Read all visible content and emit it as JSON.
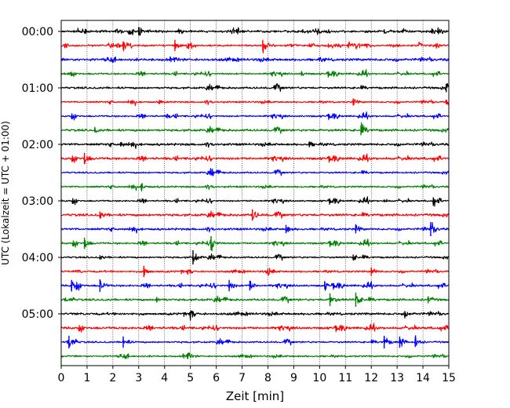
{
  "chart_data": {
    "type": "line",
    "subtype": "helicorder",
    "title": "",
    "xlabel": "Zeit  [min]",
    "ylabel": "UTC (Lokalzeit = UTC + 01:00)",
    "xlim": [
      0,
      15
    ],
    "x_ticks": [
      "0",
      "1",
      "2",
      "3",
      "4",
      "5",
      "6",
      "7",
      "8",
      "9",
      "10",
      "11",
      "12",
      "13",
      "14",
      "15"
    ],
    "y_ticks": [
      "00:00",
      "01:00",
      "02:00",
      "03:00",
      "04:00",
      "05:00"
    ],
    "trace_minutes": 15,
    "grid": {
      "x": true,
      "y": false,
      "style": "dotted"
    },
    "colors": [
      "#000000",
      "#ff0000",
      "#0000ff",
      "#008000"
    ],
    "traces": [
      {
        "start": "00:00",
        "events": [
          {
            "t": 3.0,
            "amp": 6
          },
          {
            "t": 12.5,
            "amp": 3
          }
        ]
      },
      {
        "start": "00:15",
        "events": [
          {
            "t": 2.4,
            "amp": 6
          },
          {
            "t": 4.4,
            "amp": 8
          },
          {
            "t": 7.8,
            "amp": 8
          }
        ]
      },
      {
        "start": "00:30",
        "events": [
          {
            "t": 10.0,
            "amp": 2
          }
        ]
      },
      {
        "start": "00:45",
        "events": [
          {
            "t": 9.3,
            "amp": 3
          }
        ]
      },
      {
        "start": "01:00",
        "events": [
          {
            "t": 8.3,
            "amp": 2
          },
          {
            "t": 14.9,
            "amp": 6
          }
        ]
      },
      {
        "start": "01:15",
        "events": [
          {
            "t": 3.8,
            "amp": 3
          },
          {
            "t": 11.3,
            "amp": 5
          },
          {
            "t": 14.9,
            "amp": 3
          }
        ]
      },
      {
        "start": "01:30",
        "events": [
          {
            "t": 4.1,
            "amp": 3
          }
        ]
      },
      {
        "start": "01:45",
        "events": [
          {
            "t": 1.3,
            "amp": 3
          },
          {
            "t": 11.6,
            "amp": 7
          }
        ]
      },
      {
        "start": "02:00",
        "events": [
          {
            "t": 2.3,
            "amp": 3
          },
          {
            "t": 9.6,
            "amp": 4
          }
        ]
      },
      {
        "start": "02:15",
        "events": [
          {
            "t": 0.9,
            "amp": 8
          }
        ]
      },
      {
        "start": "02:30",
        "events": [
          {
            "t": 5.8,
            "amp": 4
          }
        ]
      },
      {
        "start": "02:45",
        "events": [
          {
            "t": 3.1,
            "amp": 4
          }
        ]
      },
      {
        "start": "03:00",
        "events": [
          {
            "t": 12.5,
            "amp": 2
          },
          {
            "t": 14.4,
            "amp": 5
          }
        ]
      },
      {
        "start": "03:15",
        "events": [
          {
            "t": 1.5,
            "amp": 5
          },
          {
            "t": 7.4,
            "amp": 8
          }
        ]
      },
      {
        "start": "03:30",
        "events": [
          {
            "t": 8.7,
            "amp": 6
          },
          {
            "t": 11.4,
            "amp": 6
          },
          {
            "t": 14.3,
            "amp": 10
          }
        ]
      },
      {
        "start": "03:45",
        "events": [
          {
            "t": 0.9,
            "amp": 8
          },
          {
            "t": 5.8,
            "amp": 10
          }
        ]
      },
      {
        "start": "04:00",
        "events": [
          {
            "t": 1.5,
            "amp": 3
          },
          {
            "t": 5.1,
            "amp": 10
          },
          {
            "t": 11.3,
            "amp": 4
          }
        ]
      },
      {
        "start": "04:15",
        "events": [
          {
            "t": 3.2,
            "amp": 8
          },
          {
            "t": 8.0,
            "amp": 4
          },
          {
            "t": 12.0,
            "amp": 6
          }
        ]
      },
      {
        "start": "04:30",
        "events": [
          {
            "t": 0.4,
            "amp": 8
          },
          {
            "t": 1.5,
            "amp": 9
          },
          {
            "t": 6.5,
            "amp": 8
          },
          {
            "t": 7.3,
            "amp": 7
          },
          {
            "t": 10.2,
            "amp": 5
          }
        ]
      },
      {
        "start": "04:45",
        "events": [
          {
            "t": 3.7,
            "amp": 4
          },
          {
            "t": 10.4,
            "amp": 9
          },
          {
            "t": 11.4,
            "amp": 10
          },
          {
            "t": 14.2,
            "amp": 5
          }
        ]
      },
      {
        "start": "05:00",
        "events": [
          {
            "t": 5.0,
            "amp": 3
          },
          {
            "t": 13.3,
            "amp": 4
          }
        ]
      },
      {
        "start": "05:15",
        "events": []
      },
      {
        "start": "05:30",
        "events": [
          {
            "t": 0.3,
            "amp": 9
          },
          {
            "t": 2.4,
            "amp": 8
          },
          {
            "t": 12.5,
            "amp": 9
          },
          {
            "t": 13.1,
            "amp": 8
          },
          {
            "t": 13.7,
            "amp": 7
          }
        ]
      },
      {
        "start": "05:45",
        "events": [
          {
            "t": 4.9,
            "amp": 4
          }
        ]
      }
    ]
  }
}
